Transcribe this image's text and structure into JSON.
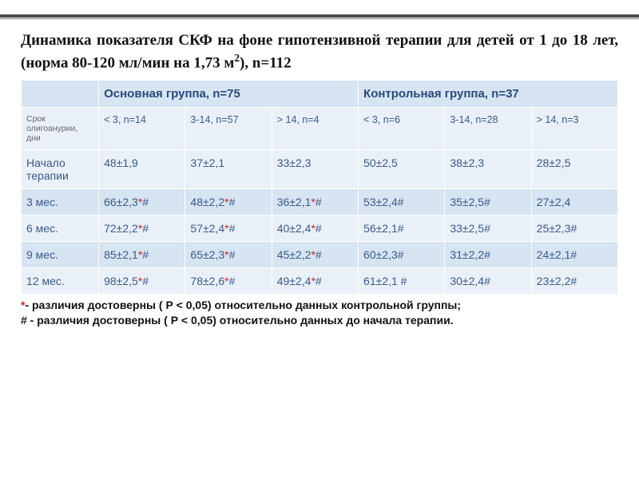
{
  "title_html": "Динамика показателя СКФ на фоне гипотензивной терапии для детей от 1 до 18 лет, (норма 80-120 мл/мин на 1,73&nbsp;м<sup>2</sup>), n=112",
  "groups": {
    "main": "Основная группа, n=75",
    "control": "Контрольная группа, n=37"
  },
  "sub_row_label": "Срок олигоанурии, дни",
  "sub_cols": {
    "m1": "< 3,\nn=14",
    "m2": "3-14,\nn=57",
    "m3": "> 14,\nn=4",
    "c1": "< 3,\nn=6",
    "c2": "3-14,\nn=28",
    "c3": "> 14,\nn=3"
  },
  "rows": [
    {
      "label": "Начало терапии",
      "cells": [
        {
          "v": "48±1,9",
          "s": false,
          "h": false
        },
        {
          "v": "37±2,1",
          "s": false,
          "h": false
        },
        {
          "v": "33±2,3",
          "s": false,
          "h": false
        },
        {
          "v": "50±2,5",
          "s": false,
          "h": false
        },
        {
          "v": "38±2,3",
          "s": false,
          "h": false
        },
        {
          "v": "28±2,5",
          "s": false,
          "h": false
        }
      ]
    },
    {
      "label": "3 мес.",
      "cells": [
        {
          "v": "66±2,3",
          "s": true,
          "h": true
        },
        {
          "v": "48±2,2",
          "s": true,
          "h": true
        },
        {
          "v": "36±2,1",
          "s": true,
          "h": true
        },
        {
          "v": "53±2,4",
          "s": false,
          "h": true
        },
        {
          "v": "35±2,5",
          "s": false,
          "h": true
        },
        {
          "v": "27±2,4",
          "s": false,
          "h": false
        }
      ]
    },
    {
      "label": "6 мес.",
      "cells": [
        {
          "v": "72±2,2",
          "s": true,
          "h": true
        },
        {
          "v": "57±2,4",
          "s": true,
          "h": true
        },
        {
          "v": "40±2,4",
          "s": true,
          "h": true
        },
        {
          "v": "56±2,1",
          "s": false,
          "h": true
        },
        {
          "v": "33±2,5",
          "s": false,
          "h": true
        },
        {
          "v": "25±2,3",
          "s": false,
          "h": true
        }
      ]
    },
    {
      "label": "9 мес.",
      "cells": [
        {
          "v": "85±2,1",
          "s": true,
          "h": true
        },
        {
          "v": "65±2,3",
          "s": true,
          "h": true
        },
        {
          "v": "45±2,2",
          "s": true,
          "h": true
        },
        {
          "v": "60±2,3",
          "s": false,
          "h": true
        },
        {
          "v": "31±2,2",
          "s": false,
          "h": true
        },
        {
          "v": "24±2,1",
          "s": false,
          "h": true
        }
      ]
    },
    {
      "label": "12 мес.",
      "cells": [
        {
          "v": "98±2,5",
          "s": true,
          "h": true
        },
        {
          "v": "78±2,6",
          "s": true,
          "h": true
        },
        {
          "v": "49±2,4",
          "s": true,
          "h": true
        },
        {
          "v": "61±2,1 ",
          "s": false,
          "h": true
        },
        {
          "v": "30±2,4",
          "s": false,
          "h": true
        },
        {
          "v": "23±2,2",
          "s": false,
          "h": true
        }
      ]
    }
  ],
  "footnotes": {
    "star": "*",
    "star_text": "- различия достоверны ( Р < 0,05) относительно данных контрольной группы;",
    "hash": "#",
    "hash_text": " - различия достоверны ( Р < 0,05) относительно данных  до начала терапии."
  },
  "colors": {
    "header_bg": "#d7e4f2",
    "alt_bg": "#eaf0f8",
    "text_blue": "#3a5a88",
    "star_red": "#d02020"
  }
}
